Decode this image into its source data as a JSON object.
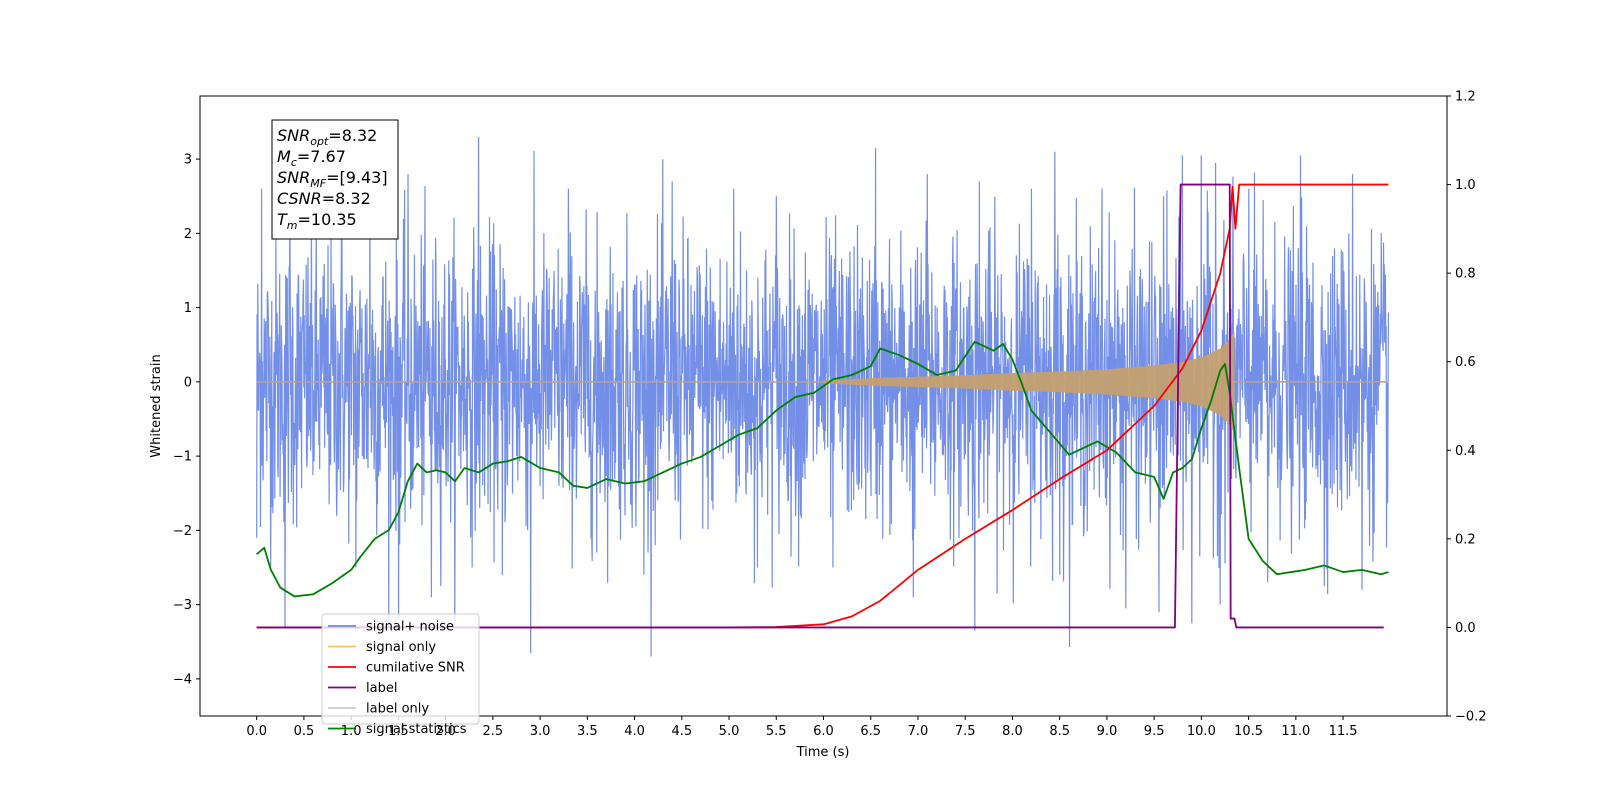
{
  "chart_data": {
    "type": "line",
    "title": "",
    "xlabel": "Time (s)",
    "ylabel": "Whitened strain",
    "xlim": [
      -0.6,
      12.6
    ],
    "ylim": [
      -4.5,
      3.85
    ],
    "y2lim": [
      -0.2,
      1.2
    ],
    "x_ticks": [
      "0.0",
      "0.5",
      "1.0",
      "1.5",
      "2.0",
      "2.5",
      "3.0",
      "3.5",
      "4.0",
      "4.5",
      "5.0",
      "5.5",
      "6.0",
      "6.5",
      "7.0",
      "7.5",
      "8.0",
      "8.5",
      "9.0",
      "9.5",
      "10.0",
      "10.5",
      "11.0",
      "11.5"
    ],
    "y_ticks": [
      "3",
      "2",
      "1",
      "0",
      "−1",
      "−2",
      "−3",
      "−4"
    ],
    "y_tick_values": [
      3,
      2,
      1,
      0,
      -1,
      -2,
      -3,
      -4
    ],
    "y2_ticks": [
      "1.2",
      "1.0",
      "0.8",
      "0.6",
      "0.4",
      "0.2",
      "0.0",
      "−0.2"
    ],
    "y2_tick_values": [
      1.2,
      1.0,
      0.8,
      0.6,
      0.4,
      0.2,
      0.0,
      -0.2
    ],
    "legend": {
      "position": "lower-left",
      "entries": [
        {
          "label": "signal+ noise",
          "color": "#6c89e6"
        },
        {
          "label": "signal only",
          "color": "#ffc04d"
        },
        {
          "label": "cumilative SNR",
          "color": "#ff0000"
        },
        {
          "label": "label",
          "color": "#800080"
        },
        {
          "label": "label only",
          "color": "#cccccc"
        },
        {
          "label": "signal statistics",
          "color": "#008000"
        }
      ]
    },
    "annotation": {
      "lines": [
        {
          "sym": "SNR",
          "sub": "opt",
          "value": "=8.32"
        },
        {
          "sym": "M",
          "sub": "c",
          "value": "=7.67"
        },
        {
          "sym": "SNR",
          "sub": "MF",
          "value": "=[9.43]"
        },
        {
          "sym": "CSNR",
          "sub": "",
          "value": "=8.32"
        },
        {
          "sym": "T",
          "sub": "m",
          "value": "=10.35"
        }
      ]
    },
    "series": [
      {
        "name": "signal+ noise",
        "axis": "left",
        "color": "#6c89e6",
        "kind": "noise",
        "x_range": [
          0.0,
          11.98
        ],
        "spikes_high": [
          [
            0.05,
            2.6
          ],
          [
            0.35,
            2.3
          ],
          [
            0.9,
            2.7
          ],
          [
            1.2,
            2.5
          ],
          [
            1.6,
            2.8
          ],
          [
            2.35,
            3.3
          ],
          [
            2.9,
            2.8
          ],
          [
            3.3,
            2.6
          ],
          [
            4.4,
            2.7
          ],
          [
            5.05,
            2.6
          ],
          [
            5.5,
            2.5
          ],
          [
            6.55,
            3.15
          ],
          [
            7.1,
            2.8
          ],
          [
            7.65,
            2.7
          ],
          [
            8.2,
            2.6
          ],
          [
            8.45,
            3.1
          ],
          [
            8.95,
            2.6
          ],
          [
            9.6,
            2.5
          ],
          [
            9.8,
            3.05
          ],
          [
            10.0,
            3.05
          ],
          [
            10.15,
            2.95
          ],
          [
            10.5,
            2.6
          ],
          [
            11.05,
            3.05
          ],
          [
            11.6,
            2.8
          ]
        ],
        "spikes_low": [
          [
            0.0,
            -2.1
          ],
          [
            0.3,
            -3.3
          ],
          [
            1.05,
            -2.5
          ],
          [
            1.5,
            -3.2
          ],
          [
            1.85,
            -2.9
          ],
          [
            2.6,
            -2.6
          ],
          [
            2.9,
            -3.65
          ],
          [
            3.6,
            -2.3
          ],
          [
            4.1,
            -2.6
          ],
          [
            5.3,
            -2.5
          ],
          [
            6.1,
            -2.5
          ],
          [
            6.95,
            -2.9
          ],
          [
            7.6,
            -3.35
          ],
          [
            8.5,
            -2.6
          ],
          [
            9.2,
            -3.05
          ],
          [
            9.55,
            -3.1
          ],
          [
            9.9,
            -3.25
          ],
          [
            10.2,
            -3.0
          ],
          [
            10.7,
            -2.7
          ],
          [
            11.3,
            -2.75
          ],
          [
            11.7,
            -2.8
          ]
        ]
      },
      {
        "name": "signal only",
        "axis": "left",
        "color": "#ffc04d",
        "kind": "chirp",
        "x": [
          6.0,
          6.5,
          7.0,
          7.5,
          8.0,
          8.5,
          9.0,
          9.5,
          9.8,
          10.0,
          10.2,
          10.3,
          10.35
        ],
        "amplitude": [
          0.02,
          0.05,
          0.07,
          0.09,
          0.12,
          0.14,
          0.17,
          0.22,
          0.27,
          0.33,
          0.45,
          0.58,
          0.68
        ]
      },
      {
        "name": "cumilative SNR",
        "axis": "right",
        "color": "#ff0000",
        "x": [
          0.0,
          5.0,
          5.5,
          6.0,
          6.3,
          6.6,
          7.0,
          7.5,
          8.0,
          8.5,
          9.0,
          9.5,
          9.8,
          10.0,
          10.2,
          10.3,
          10.33,
          10.36,
          10.4,
          11.98
        ],
        "values": [
          0.0,
          0.0,
          0.001,
          0.007,
          0.025,
          0.06,
          0.13,
          0.2,
          0.265,
          0.335,
          0.4,
          0.5,
          0.585,
          0.67,
          0.8,
          0.9,
          0.995,
          0.9,
          1.0,
          1.0
        ]
      },
      {
        "name": "label",
        "axis": "right",
        "color": "#800080",
        "x": [
          0.0,
          9.72,
          9.78,
          10.3,
          10.31,
          10.35,
          10.37,
          11.93
        ],
        "values": [
          0.0,
          0.0,
          1.0,
          1.0,
          0.02,
          0.02,
          0.0,
          0.0
        ]
      },
      {
        "name": "signal statistics",
        "axis": "right",
        "color": "#008000",
        "x": [
          0.0,
          0.08,
          0.15,
          0.25,
          0.4,
          0.6,
          0.8,
          1.0,
          1.1,
          1.25,
          1.4,
          1.5,
          1.6,
          1.7,
          1.8,
          1.9,
          2.0,
          2.1,
          2.2,
          2.35,
          2.5,
          2.65,
          2.8,
          3.0,
          3.2,
          3.35,
          3.5,
          3.7,
          3.9,
          4.1,
          4.3,
          4.5,
          4.7,
          4.9,
          5.1,
          5.3,
          5.5,
          5.7,
          5.9,
          6.1,
          6.3,
          6.5,
          6.6,
          6.8,
          7.0,
          7.2,
          7.4,
          7.6,
          7.7,
          7.8,
          7.9,
          8.0,
          8.1,
          8.2,
          8.4,
          8.6,
          8.8,
          8.9,
          9.1,
          9.3,
          9.5,
          9.6,
          9.7,
          9.8,
          9.9,
          10.0,
          10.1,
          10.2,
          10.25,
          10.3,
          10.4,
          10.5,
          10.65,
          10.8,
          10.95,
          11.1,
          11.3,
          11.5,
          11.7,
          11.9,
          11.98
        ],
        "values": [
          0.165,
          0.18,
          0.13,
          0.09,
          0.07,
          0.075,
          0.1,
          0.13,
          0.16,
          0.2,
          0.22,
          0.26,
          0.33,
          0.37,
          0.35,
          0.355,
          0.35,
          0.33,
          0.36,
          0.35,
          0.37,
          0.375,
          0.385,
          0.36,
          0.35,
          0.32,
          0.315,
          0.335,
          0.325,
          0.33,
          0.35,
          0.37,
          0.385,
          0.41,
          0.435,
          0.45,
          0.49,
          0.52,
          0.53,
          0.56,
          0.57,
          0.59,
          0.63,
          0.615,
          0.595,
          0.57,
          0.58,
          0.645,
          0.635,
          0.625,
          0.64,
          0.605,
          0.55,
          0.49,
          0.44,
          0.39,
          0.41,
          0.42,
          0.395,
          0.35,
          0.34,
          0.29,
          0.35,
          0.36,
          0.38,
          0.45,
          0.51,
          0.58,
          0.595,
          0.53,
          0.36,
          0.2,
          0.15,
          0.12,
          0.125,
          0.13,
          0.14,
          0.125,
          0.13,
          0.12,
          0.125
        ]
      }
    ]
  }
}
